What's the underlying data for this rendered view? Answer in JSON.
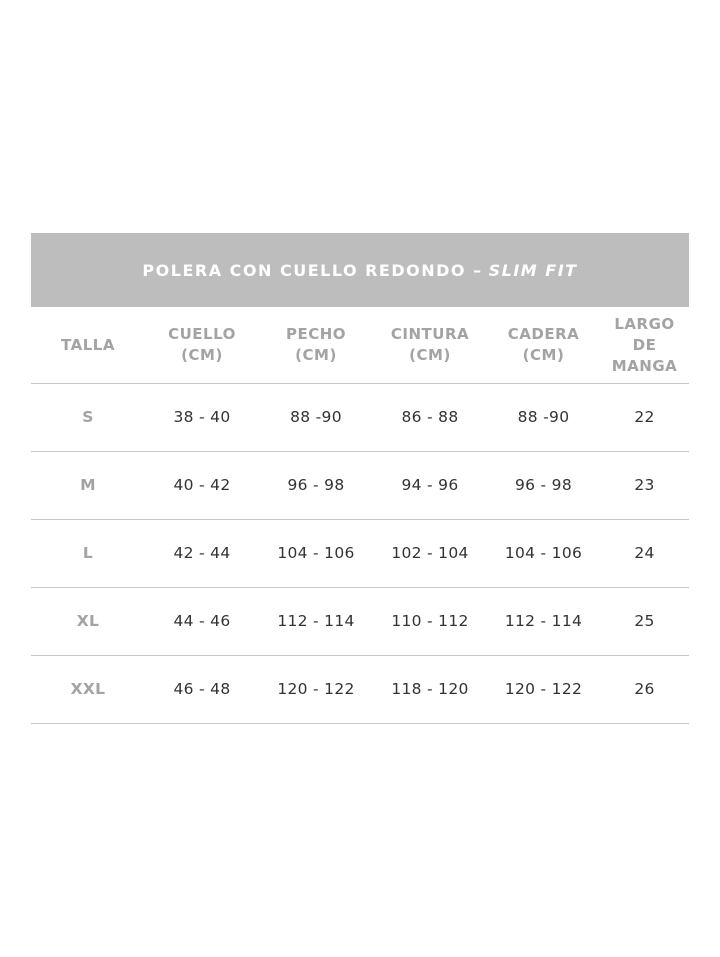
{
  "title": {
    "main": "POLERA CON CUELLO REDONDO –",
    "fit": "SLIM FIT"
  },
  "headers": [
    [
      "TALLA",
      ""
    ],
    [
      "CUELLO",
      "(CM)"
    ],
    [
      "PECHO",
      "(CM)"
    ],
    [
      "CINTURA",
      "(CM)"
    ],
    [
      "CADERA",
      "(CM)"
    ],
    [
      "LARGO DE",
      "MANGA"
    ]
  ],
  "rows": [
    [
      "S",
      "38 - 40",
      "88 -90",
      "86 - 88",
      "88 -90",
      "22"
    ],
    [
      "M",
      "40 - 42",
      "96 - 98",
      "94 - 96",
      "96 - 98",
      "23"
    ],
    [
      "L",
      "42 - 44",
      "104 - 106",
      "102 - 104",
      "104 - 106",
      "24"
    ],
    [
      "XL",
      "44 - 46",
      "112 - 114",
      "110 - 112",
      "112 - 114",
      "25"
    ],
    [
      "XXL",
      "46 - 48",
      "120 - 122",
      "118 - 120",
      "120 - 122",
      "26"
    ]
  ],
  "colors": {
    "title_bg": "#bdbdbd",
    "header_text": "#a3a3a3",
    "value_text": "#333333"
  }
}
